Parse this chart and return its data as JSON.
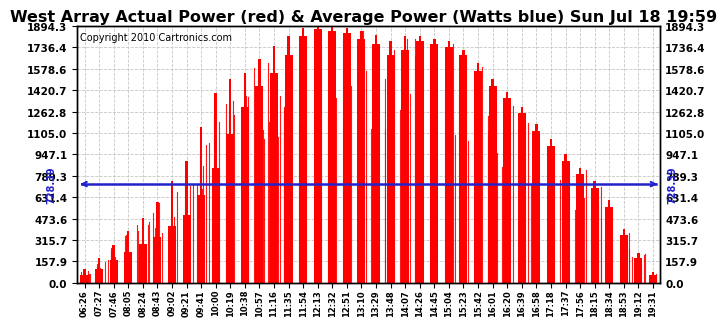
{
  "title": "West Array Actual Power (red) & Average Power (Watts blue) Sun Jul 18 19:59",
  "copyright": "Copyright 2010 Cartronics.com",
  "avg_power": 728.39,
  "ymax": 1894.3,
  "yticks": [
    0.0,
    157.9,
    315.7,
    473.6,
    631.4,
    789.3,
    947.1,
    1105.0,
    1262.8,
    1420.7,
    1578.6,
    1736.4,
    1894.3
  ],
  "bg_color": "#ffffff",
  "bar_color": "#ff0000",
  "line_color": "#2222cc",
  "grid_color": "#c0c0c0",
  "title_fontsize": 11.5,
  "copyright_fontsize": 7,
  "x_labels": [
    "06:26",
    "07:27",
    "07:46",
    "08:05",
    "08:24",
    "08:43",
    "09:02",
    "09:21",
    "09:41",
    "10:00",
    "10:19",
    "10:38",
    "10:57",
    "11:16",
    "11:35",
    "11:54",
    "12:13",
    "12:32",
    "12:51",
    "13:10",
    "13:29",
    "13:48",
    "14:07",
    "14:26",
    "14:45",
    "15:04",
    "15:23",
    "15:42",
    "16:01",
    "16:20",
    "16:39",
    "16:58",
    "17:18",
    "17:37",
    "17:56",
    "18:15",
    "18:34",
    "18:53",
    "19:12",
    "19:31"
  ],
  "bar_heights": [
    60,
    100,
    170,
    230,
    290,
    340,
    420,
    500,
    650,
    850,
    1100,
    1300,
    1450,
    1550,
    1680,
    1820,
    1870,
    1860,
    1840,
    1800,
    1760,
    1680,
    1720,
    1780,
    1760,
    1740,
    1680,
    1560,
    1450,
    1360,
    1250,
    1120,
    1010,
    900,
    800,
    700,
    560,
    350,
    180,
    60
  ],
  "bar_peaks": [
    100,
    180,
    280,
    380,
    480,
    600,
    750,
    900,
    1150,
    1400,
    1500,
    1550,
    1650,
    1750,
    1820,
    1880,
    1900,
    1890,
    1880,
    1860,
    1830,
    1780,
    1820,
    1820,
    1800,
    1780,
    1720,
    1620,
    1500,
    1410,
    1300,
    1170,
    1060,
    950,
    850,
    750,
    610,
    400,
    220,
    80
  ]
}
